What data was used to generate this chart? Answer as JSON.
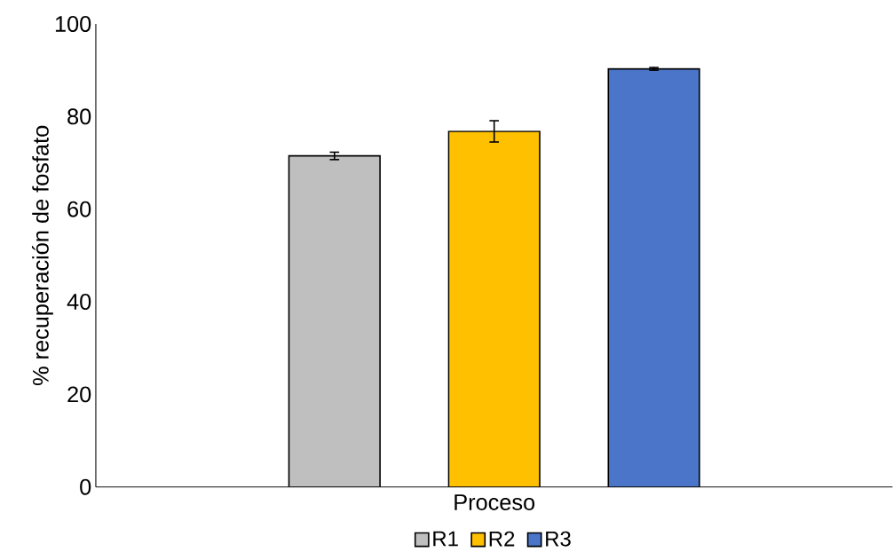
{
  "chart_data": {
    "type": "bar",
    "xlabel": "Proceso",
    "ylabel": "% recuperación de fosfato",
    "categories": [
      null
    ],
    "series": [
      {
        "name": "R1",
        "color": "#bfbfbf",
        "values": [
          71.5
        ],
        "errors": [
          0.8
        ]
      },
      {
        "name": "R2",
        "color": "#ffc000",
        "values": [
          76.8
        ],
        "errors": [
          2.3
        ]
      },
      {
        "name": "R3",
        "color": "#4a75c8",
        "values": [
          90.3
        ],
        "errors": [
          0.3
        ]
      }
    ],
    "ylim": [
      0,
      100
    ],
    "yticks": [
      0,
      20,
      40,
      60,
      80,
      100
    ],
    "grid": false,
    "legend": "bottom"
  }
}
